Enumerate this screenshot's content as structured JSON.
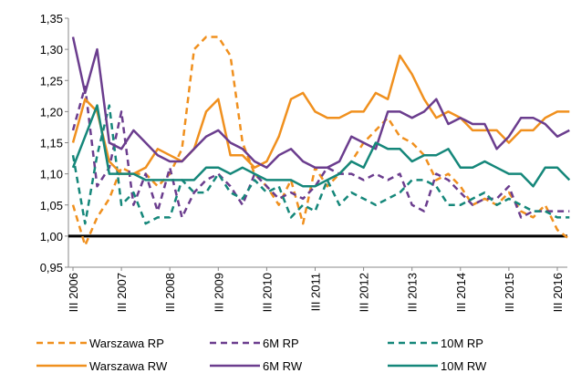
{
  "chart_data": {
    "type": "line",
    "categories": [
      "III 2006",
      null,
      null,
      null,
      "III 2007",
      null,
      null,
      null,
      "III 2008",
      null,
      null,
      null,
      "III 2009",
      null,
      null,
      null,
      "III 2010",
      null,
      null,
      null,
      "III 2011",
      null,
      null,
      null,
      "III 2012",
      null,
      null,
      null,
      "III 2013",
      null,
      null,
      null,
      "III 2014",
      null,
      null,
      null,
      "III 2015",
      null,
      null,
      null,
      "III 2016",
      null
    ],
    "series": [
      {
        "name": "Warszawa RP",
        "color": "#f0901e",
        "style": "dashed",
        "values": [
          1.05,
          0.985,
          1.03,
          1.06,
          1.11,
          1.1,
          1.1,
          1.08,
          1.1,
          1.14,
          1.3,
          1.32,
          1.32,
          1.29,
          1.15,
          1.1,
          1.08,
          1.05,
          1.09,
          1.02,
          1.11,
          1.08,
          1.1,
          1.12,
          1.15,
          1.17,
          1.19,
          1.16,
          1.15,
          1.13,
          1.09,
          1.1,
          1.08,
          1.05,
          1.06,
          1.05,
          1.07,
          1.04,
          1.03,
          1.05,
          1.01,
          0.995
        ]
      },
      {
        "name": "6M RP",
        "color": "#6b3d8e",
        "style": "dashed",
        "values": [
          1.17,
          1.24,
          1.08,
          1.11,
          1.2,
          1.05,
          1.1,
          1.04,
          1.11,
          1.03,
          1.07,
          1.09,
          1.1,
          1.08,
          1.05,
          1.1,
          1.08,
          1.06,
          1.07,
          1.06,
          1.08,
          1.11,
          1.1,
          1.1,
          1.09,
          1.1,
          1.09,
          1.1,
          1.05,
          1.04,
          1.1,
          1.09,
          1.07,
          1.05,
          1.06,
          1.06,
          1.08,
          1.03,
          1.04,
          1.04,
          1.04,
          1.04
        ]
      },
      {
        "name": "10M RP",
        "color": "#15877a",
        "style": "dashed",
        "values": [
          1.13,
          1.02,
          1.13,
          1.21,
          1.05,
          1.07,
          1.02,
          1.03,
          1.03,
          1.09,
          1.07,
          1.07,
          1.1,
          1.07,
          1.06,
          1.09,
          1.07,
          1.08,
          1.03,
          1.05,
          1.04,
          1.09,
          1.05,
          1.07,
          1.06,
          1.05,
          1.06,
          1.07,
          1.09,
          1.09,
          1.08,
          1.05,
          1.05,
          1.06,
          1.07,
          1.05,
          1.06,
          1.05,
          1.04,
          1.04,
          1.03,
          1.03
        ]
      },
      {
        "name": "Warszawa RW",
        "color": "#f0901e",
        "style": "solid",
        "values": [
          1.15,
          1.22,
          1.2,
          1.12,
          1.1,
          1.1,
          1.11,
          1.14,
          1.13,
          1.12,
          1.14,
          1.2,
          1.22,
          1.13,
          1.13,
          1.11,
          1.12,
          1.16,
          1.22,
          1.23,
          1.2,
          1.19,
          1.19,
          1.2,
          1.2,
          1.23,
          1.22,
          1.29,
          1.26,
          1.22,
          1.19,
          1.2,
          1.19,
          1.17,
          1.17,
          1.17,
          1.15,
          1.17,
          1.17,
          1.19,
          1.2,
          1.2
        ]
      },
      {
        "name": "6M RW",
        "color": "#6b3d8e",
        "style": "solid",
        "values": [
          1.32,
          1.23,
          1.3,
          1.15,
          1.14,
          1.17,
          1.15,
          1.13,
          1.12,
          1.12,
          1.14,
          1.16,
          1.17,
          1.15,
          1.14,
          1.12,
          1.11,
          1.13,
          1.14,
          1.12,
          1.11,
          1.11,
          1.12,
          1.16,
          1.15,
          1.14,
          1.2,
          1.2,
          1.19,
          1.2,
          1.22,
          1.18,
          1.19,
          1.18,
          1.18,
          1.14,
          1.16,
          1.19,
          1.19,
          1.18,
          1.16,
          1.17
        ]
      },
      {
        "name": "10M RW",
        "color": "#15877a",
        "style": "solid",
        "values": [
          1.11,
          1.16,
          1.21,
          1.1,
          1.1,
          1.1,
          1.09,
          1.09,
          1.09,
          1.09,
          1.09,
          1.11,
          1.11,
          1.1,
          1.11,
          1.1,
          1.09,
          1.09,
          1.09,
          1.08,
          1.08,
          1.09,
          1.1,
          1.12,
          1.11,
          1.15,
          1.14,
          1.14,
          1.12,
          1.13,
          1.13,
          1.14,
          1.11,
          1.11,
          1.12,
          1.11,
          1.1,
          1.1,
          1.08,
          1.11,
          1.11,
          1.09
        ]
      }
    ],
    "ylim": [
      0.95,
      1.35
    ],
    "yticks": [
      {
        "value": 0.95,
        "label": "0,95"
      },
      {
        "value": 1.0,
        "label": "1,00"
      },
      {
        "value": 1.05,
        "label": "1,05"
      },
      {
        "value": 1.1,
        "label": "1,10"
      },
      {
        "value": 1.15,
        "label": "1,15"
      },
      {
        "value": 1.2,
        "label": "1,20"
      },
      {
        "value": 1.25,
        "label": "1,25"
      },
      {
        "value": 1.3,
        "label": "1,30"
      },
      {
        "value": 1.35,
        "label": "1,35"
      }
    ],
    "reference_line": 1.0,
    "grid": false
  }
}
